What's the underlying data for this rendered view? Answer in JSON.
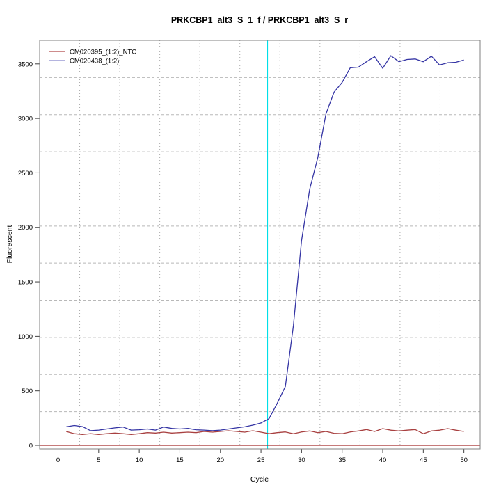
{
  "chart_data": {
    "type": "line",
    "title": "PRKCBP1_alt3_S_1_f / PRKCBP1_alt3_S_r",
    "xlabel": "Cycle",
    "ylabel": "Fluorescent",
    "x_ticks": [
      0,
      5,
      10,
      15,
      20,
      25,
      30,
      35,
      40,
      45,
      50
    ],
    "y_ticks": [
      0,
      500,
      1000,
      1500,
      2000,
      2500,
      3000,
      3500
    ],
    "xlim": [
      -2.3,
      52.0
    ],
    "ylim": [
      -32,
      3715
    ],
    "grid": {
      "vertical_internal_lines": 10,
      "vertical_style": "dotted",
      "horizontal_internal_lines": 10,
      "horizontal_style": "dashed",
      "color": "#aaaaaa"
    },
    "legend_position": "top-left",
    "threshold_line": {
      "orientation": "vertical",
      "cycle": 25.8,
      "color": "#00dfe8"
    },
    "zero_line": {
      "orientation": "horizontal",
      "value": 0,
      "color": "#a52a2a"
    },
    "x": [
      1,
      2,
      3,
      4,
      5,
      6,
      7,
      8,
      9,
      10,
      11,
      12,
      13,
      14,
      15,
      16,
      17,
      18,
      19,
      20,
      21,
      22,
      23,
      24,
      25,
      26,
      27,
      28,
      29,
      30,
      31,
      32,
      33,
      34,
      35,
      36,
      37,
      38,
      39,
      40,
      41,
      42,
      43,
      44,
      45,
      46,
      47,
      48,
      49,
      50
    ],
    "series": [
      {
        "name": "CM020395_(1:2)_NTC",
        "color": "#a84040",
        "legend_color": "#b04848",
        "values": [
          128,
          107,
          100,
          107,
          100,
          107,
          113,
          107,
          100,
          107,
          117,
          113,
          121,
          113,
          117,
          121,
          117,
          128,
          121,
          128,
          134,
          128,
          121,
          134,
          121,
          107,
          117,
          123,
          107,
          123,
          132,
          117,
          128,
          111,
          107,
          123,
          132,
          145,
          128,
          153,
          139,
          132,
          139,
          145,
          107,
          132,
          139,
          153,
          139,
          128
        ]
      },
      {
        "name": "CM020438_(1:2)",
        "color": "#3434a4",
        "legend_color": "#8888cc",
        "values": [
          170,
          182,
          172,
          135,
          140,
          150,
          160,
          168,
          140,
          143,
          150,
          140,
          168,
          155,
          150,
          155,
          143,
          140,
          135,
          140,
          150,
          160,
          170,
          185,
          205,
          245,
          385,
          540,
          1100,
          1880,
          2350,
          2640,
          3040,
          3240,
          3330,
          3465,
          3470,
          3520,
          3565,
          3460,
          3575,
          3520,
          3540,
          3545,
          3520,
          3570,
          3490,
          3510,
          3515,
          3535
        ]
      }
    ]
  },
  "frame": {
    "box_color": "#808080",
    "tick_color": "#404040"
  }
}
